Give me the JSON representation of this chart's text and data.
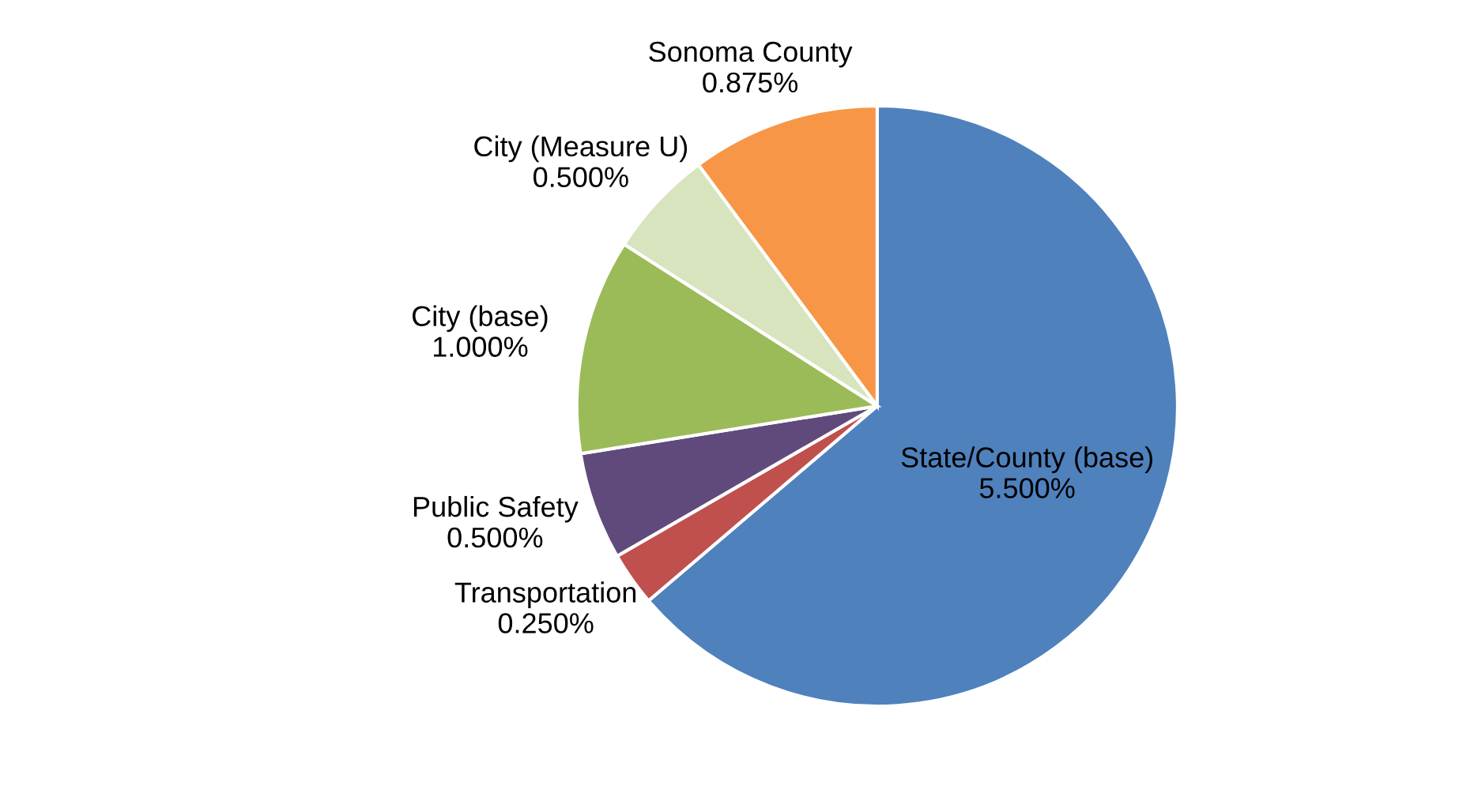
{
  "chart_data": {
    "type": "pie",
    "categories": [
      "State/County (base)",
      "Transportation",
      "Public Safety",
      "City (base)",
      "City (Measure U)",
      "Sonoma County"
    ],
    "values": [
      5.5,
      0.25,
      0.5,
      1.0,
      0.5,
      0.875
    ],
    "value_labels": [
      "5.500%",
      "0.250%",
      "0.500%",
      "1.000%",
      "0.500%",
      "0.875%"
    ],
    "colors": [
      "#4f81bd",
      "#c0504d",
      "#604a7b",
      "#9bbb59",
      "#d7e4bd",
      "#f79646"
    ]
  }
}
